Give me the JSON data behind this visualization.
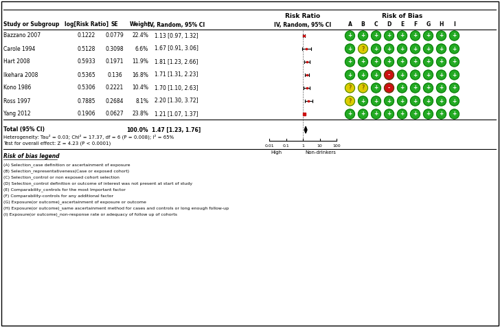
{
  "studies": [
    "Bazzano 2007",
    "Carole 1994",
    "Hart 2008",
    "Ikehara 2008",
    "Kono 1986",
    "Ross 1997",
    "Yang 2012"
  ],
  "log_rr": [
    0.1222,
    0.5128,
    0.5933,
    0.5365,
    0.5306,
    0.7885,
    0.1906
  ],
  "se": [
    0.0779,
    0.3098,
    0.1971,
    0.136,
    0.2221,
    0.2684,
    0.0627
  ],
  "weight": [
    "22.4%",
    "6.6%",
    "11.9%",
    "16.8%",
    "10.4%",
    "8.1%",
    "23.8%"
  ],
  "weight_val": [
    22.4,
    6.6,
    11.9,
    16.8,
    10.4,
    8.1,
    23.8
  ],
  "rr": [
    1.13,
    1.67,
    1.81,
    1.71,
    1.7,
    2.2,
    1.21
  ],
  "ci_lower": [
    0.97,
    0.91,
    1.23,
    1.31,
    1.1,
    1.3,
    1.07
  ],
  "ci_upper": [
    1.32,
    3.06,
    2.66,
    2.23,
    2.63,
    3.72,
    1.37
  ],
  "ci_text": [
    "1.13 [0.97, 1.32]",
    "1.67 [0.91, 3.06]",
    "1.81 [1.23, 2.66]",
    "1.71 [1.31, 2.23]",
    "1.70 [1.10, 2.63]",
    "2.20 [1.30, 3.72]",
    "1.21 [1.07, 1.37]"
  ],
  "total_rr": 1.47,
  "total_ci_lower": 1.23,
  "total_ci_upper": 1.76,
  "total_text": "1.47 [1.23, 1.76]",
  "heterogeneity": "Heterogeneity: Tau² = 0.03; Chi² = 17.37, df = 6 (P = 0.008); I² = 65%",
  "overall_effect": "Test for overall effect: Z = 4.23 (P < 0.0001)",
  "bias_grid": [
    [
      "+",
      "+",
      "+",
      "+",
      "+",
      "+",
      "+",
      "+",
      "+"
    ],
    [
      "+",
      "?",
      "+",
      "+",
      "+",
      "+",
      "+",
      "+",
      "+"
    ],
    [
      "+",
      "+",
      "+",
      "+",
      "+",
      "+",
      "+",
      "+",
      "+"
    ],
    [
      "+",
      "+",
      "+",
      "-",
      "+",
      "+",
      "+",
      "+",
      "+"
    ],
    [
      "?",
      "?",
      "+",
      "-",
      "+",
      "+",
      "+",
      "+",
      "+"
    ],
    [
      "?",
      "+",
      "+",
      "+",
      "+",
      "+",
      "+",
      "+",
      "+"
    ],
    [
      "+",
      "+",
      "+",
      "+",
      "+",
      "+",
      "+",
      "+",
      "+"
    ]
  ],
  "bias_cols": [
    "A",
    "B",
    "C",
    "D",
    "E",
    "F",
    "G",
    "H",
    "I"
  ],
  "green": "#22aa22",
  "yellow": "#ddcc00",
  "red": "#cc1111",
  "legend_lines": [
    "(A) Selection_case definition or ascertainment of exposure",
    "(B) Selection_representativeness(Case or exposed cohort)",
    "(C) Selection_control or non exposed cohort selection",
    "(D) Selection_control definition or outcome of interest was not present at start of study",
    "(E) Comparability_controls for the most Important factor",
    "(F) Comparability-controls for any additional factor",
    "(G) Exposure(or outcome)_ascertainment of exposure or outcome",
    "(H) Exposure(or outcome)_same ascertainment method for cases and controls or long enough follow-up",
    "(I) Exposure(or outcome)_non-response rate or adequacy of follow up of cohorts"
  ]
}
